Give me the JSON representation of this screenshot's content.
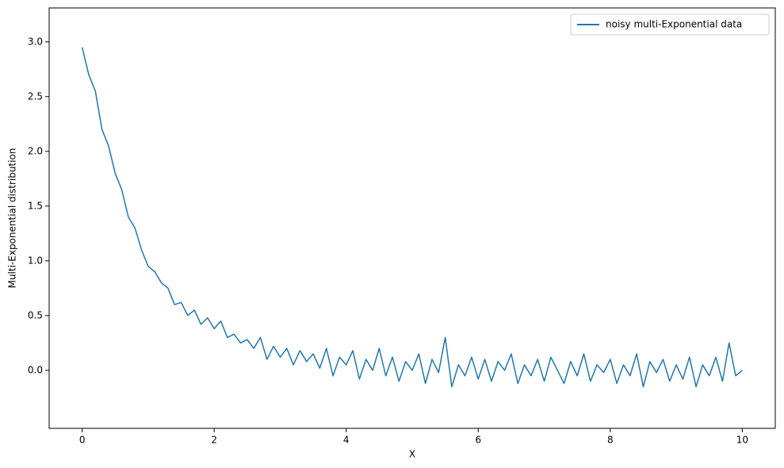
{
  "chart_data": {
    "type": "line",
    "x_label": "X",
    "y_label": "Multi-Exponential distribution",
    "legend": "upper right",
    "x": [
      0,
      0.1,
      0.2,
      0.3,
      0.4,
      0.5,
      0.6,
      0.7,
      0.8,
      0.9,
      1,
      1.1,
      1.2,
      1.3,
      1.4,
      1.5,
      1.6,
      1.7,
      1.8,
      1.9,
      2,
      2.1,
      2.2,
      2.3,
      2.4,
      2.5,
      2.6,
      2.7,
      2.8,
      2.9,
      3,
      3.1,
      3.2,
      3.3,
      3.4,
      3.5,
      3.6,
      3.7,
      3.8,
      3.9,
      4,
      4.1,
      4.2,
      4.3,
      4.4,
      4.5,
      4.6,
      4.7,
      4.8,
      4.9,
      5,
      5.1,
      5.2,
      5.3,
      5.4,
      5.5,
      5.6,
      5.7,
      5.8,
      5.9,
      6,
      6.1,
      6.2,
      6.3,
      6.4,
      6.5,
      6.6,
      6.7,
      6.8,
      6.9,
      7,
      7.1,
      7.2,
      7.3,
      7.4,
      7.5,
      7.6,
      7.7,
      7.8,
      7.9,
      8,
      8.1,
      8.2,
      8.3,
      8.4,
      8.5,
      8.6,
      8.7,
      8.8,
      8.9,
      9,
      9.1,
      9.2,
      9.3,
      9.4,
      9.5,
      9.6,
      9.7,
      9.8,
      9.9,
      10
    ],
    "series": [
      {
        "name": "noisy multi-Exponential data",
        "color": "#1f77b4",
        "values": [
          2.95,
          2.7,
          2.55,
          2.2,
          2.05,
          1.8,
          1.65,
          1.4,
          1.3,
          1.1,
          0.95,
          0.9,
          0.8,
          0.75,
          0.6,
          0.62,
          0.5,
          0.55,
          0.42,
          0.48,
          0.38,
          0.45,
          0.3,
          0.33,
          0.25,
          0.28,
          0.2,
          0.3,
          0.1,
          0.22,
          0.12,
          0.2,
          0.05,
          0.18,
          0.08,
          0.15,
          0.02,
          0.2,
          -0.05,
          0.12,
          0.05,
          0.18,
          -0.08,
          0.1,
          0.0,
          0.2,
          -0.05,
          0.12,
          -0.1,
          0.08,
          0.0,
          0.15,
          -0.12,
          0.1,
          -0.02,
          0.3,
          -0.15,
          0.05,
          -0.05,
          0.12,
          -0.08,
          0.1,
          -0.1,
          0.08,
          0.0,
          0.15,
          -0.12,
          0.05,
          -0.05,
          0.1,
          -0.1,
          0.12,
          0.0,
          -0.12,
          0.08,
          -0.05,
          0.15,
          -0.1,
          0.05,
          -0.02,
          0.1,
          -0.12,
          0.05,
          -0.05,
          0.15,
          -0.15,
          0.08,
          -0.02,
          0.1,
          -0.1,
          0.05,
          -0.08,
          0.12,
          -0.15,
          0.05,
          -0.05,
          0.12,
          -0.1,
          0.25,
          -0.05,
          0.0
        ]
      }
    ],
    "xlim": [
      -0.5,
      10.5
    ],
    "ylim": [
      -0.53,
      3.31
    ],
    "xticks": [
      0,
      2,
      4,
      6,
      8,
      10
    ],
    "yticks": [
      {
        "value": 0,
        "label": "0.0"
      },
      {
        "value": 0.5,
        "label": "0.5"
      },
      {
        "value": 1,
        "label": "1.0"
      },
      {
        "value": 1.5,
        "label": "1.5"
      },
      {
        "value": 2,
        "label": "2.0"
      },
      {
        "value": 2.5,
        "label": "2.5"
      },
      {
        "value": 3,
        "label": "3.0"
      }
    ]
  }
}
